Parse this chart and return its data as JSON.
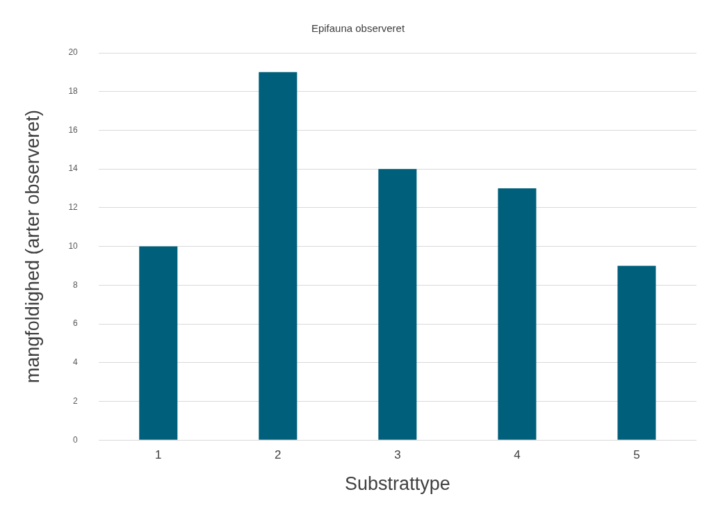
{
  "chart_data": {
    "type": "bar",
    "title": "Epifauna observeret",
    "xlabel": "Substrattype",
    "ylabel": "mangfoldighed (arter observeret)",
    "categories": [
      "1",
      "2",
      "3",
      "4",
      "5"
    ],
    "values": [
      10,
      19,
      14,
      13,
      9
    ],
    "color": "#005f7a",
    "ylim": [
      0,
      20
    ],
    "yticks": [
      0,
      2,
      4,
      6,
      8,
      10,
      12,
      14,
      16,
      18,
      20
    ],
    "grid": "y",
    "legend": false
  }
}
